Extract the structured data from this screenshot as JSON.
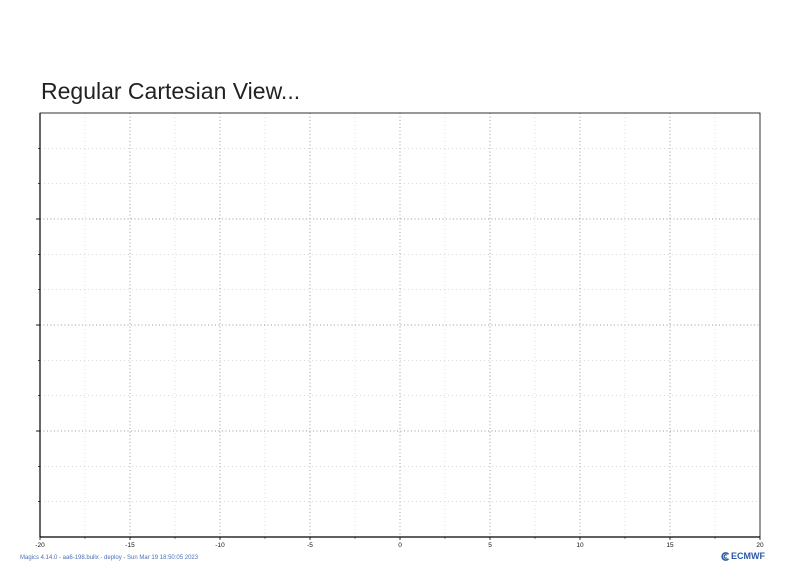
{
  "chart_data": {
    "type": "scatter",
    "title": "Regular Cartesian View...",
    "xlabel": "",
    "ylabel": "",
    "xlim": [
      -20,
      20
    ],
    "ylim": [
      0,
      4
    ],
    "x_ticks": [
      -20,
      -15,
      -10,
      -5,
      0,
      5,
      10,
      15,
      20
    ],
    "x_tick_labels": [
      "-20",
      "-15",
      "-10",
      "-5",
      "0",
      "5",
      "10",
      "15",
      "20"
    ],
    "x_minor_step": 2.5,
    "y_ticks": [
      1,
      2,
      3
    ],
    "y_minor_step": 0.333,
    "y_tick_labels_visible": false,
    "grid": true,
    "series": []
  },
  "footer": {
    "credit": "Magics 4.14.0 - aa6-198.bullx - deploy - Sun Mar 19 18:50:05 2023",
    "brand": "ECMWF"
  },
  "colors": {
    "axis": "#000000",
    "grid": "#777777",
    "credit": "#4a6fb5",
    "brand": "#2b5aa7"
  }
}
